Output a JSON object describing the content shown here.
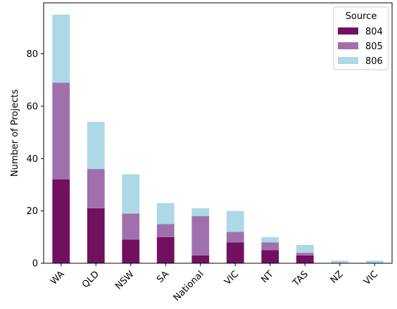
{
  "chart_data": {
    "type": "bar",
    "stacked": true,
    "title": "",
    "xlabel": "",
    "ylabel": "Number of Projects",
    "ylim": [
      0,
      99.5
    ],
    "yticks": [
      0,
      20,
      40,
      60,
      80
    ],
    "categories": [
      "WA",
      "QLD",
      "NSW",
      "SA",
      "National",
      "VIC",
      "NT",
      "TAS",
      "NZ",
      "VIC"
    ],
    "series": [
      {
        "name": "804",
        "color": "#721060",
        "values": [
          32,
          21,
          9,
          10,
          3,
          8,
          5,
          3,
          0,
          0
        ]
      },
      {
        "name": "805",
        "color": "#a070ad",
        "values": [
          37,
          15,
          10,
          5,
          15,
          4,
          3,
          1,
          0,
          0
        ]
      },
      {
        "name": "806",
        "color": "#add8e6",
        "values": [
          26,
          18,
          15,
          8,
          3,
          8,
          2,
          3,
          1,
          1
        ]
      }
    ],
    "legend": {
      "title": "Source",
      "position": "top-right"
    },
    "grid": false
  }
}
